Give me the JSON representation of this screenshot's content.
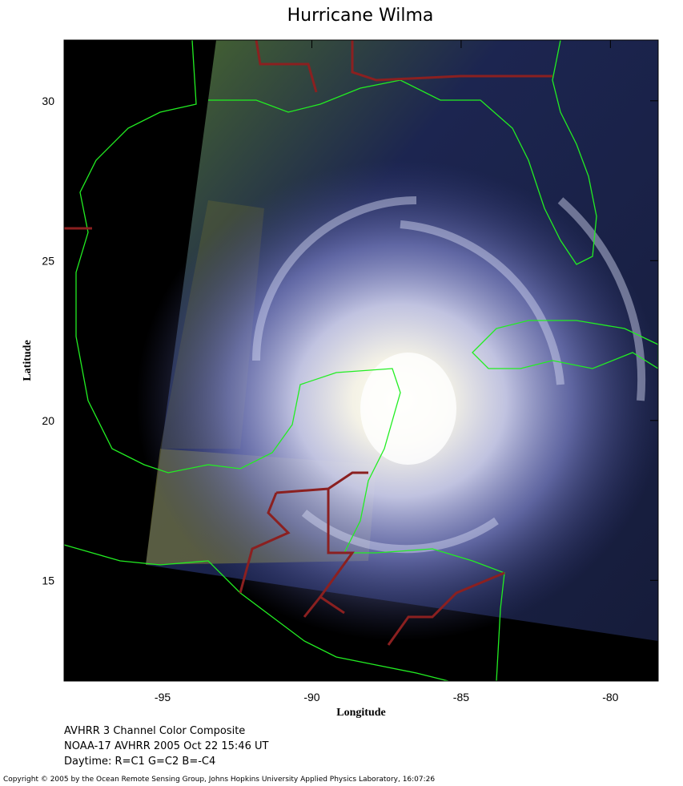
{
  "title": "Hurricane Wilma",
  "x_axis": {
    "label": "Longitude",
    "lim": [
      -98.3,
      -78.4
    ],
    "ticks": [
      -95,
      -90,
      -85,
      -80
    ]
  },
  "y_axis": {
    "label": "Latitude",
    "lim": [
      11.85,
      31.9
    ],
    "ticks": [
      15,
      20,
      25,
      30
    ]
  },
  "caption": [
    "AVHRR 3 Channel Color Composite",
    "NOAA-17 AVHRR 2005 Oct 22 15:46 UT",
    "Daytime: R=C1 G=C2 B=-C4"
  ],
  "copyright": "Copyright © 2005 by the Ocean Remote Sensing Group, Johns Hopkins University Applied Physics Laboratory, 16:07:26"
}
